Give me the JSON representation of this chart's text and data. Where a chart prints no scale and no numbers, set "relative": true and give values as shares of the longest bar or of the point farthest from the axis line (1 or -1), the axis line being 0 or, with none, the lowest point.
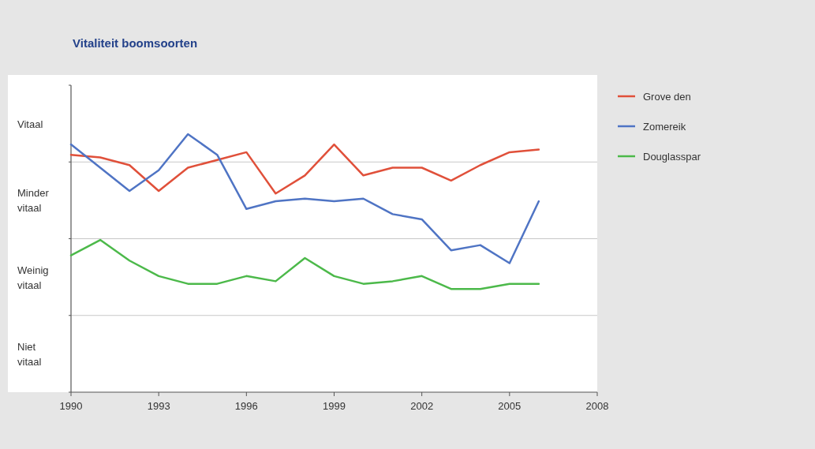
{
  "chart_data": {
    "type": "line",
    "title": "Vitaliteit boomsoorten",
    "relative": true,
    "x": [
      1990,
      1991,
      1992,
      1993,
      1994,
      1995,
      1996,
      1997,
      1998,
      1999,
      2000,
      2001,
      2002,
      2003,
      2004,
      2005,
      2006
    ],
    "series": [
      {
        "name": "Grove den",
        "color": "#e0503a",
        "values": [
          0.92,
          0.91,
          0.88,
          0.78,
          0.87,
          0.9,
          0.93,
          0.77,
          0.84,
          0.96,
          0.84,
          0.87,
          0.87,
          0.82,
          0.88,
          0.93,
          0.94
        ]
      },
      {
        "name": "Zomereik",
        "color": "#4f74c4",
        "values": [
          0.96,
          0.87,
          0.78,
          0.86,
          1,
          0.92,
          0.71,
          0.74,
          0.75,
          0.74,
          0.75,
          0.69,
          0.67,
          0.55,
          0.57,
          0.5,
          0.74
        ]
      },
      {
        "name": "Douglasspar",
        "color": "#4cb94a",
        "values": [
          0.53,
          0.59,
          0.51,
          0.45,
          0.42,
          0.42,
          0.45,
          0.43,
          0.52,
          0.45,
          0.42,
          0.43,
          0.45,
          0.4,
          0.4,
          0.42,
          0.42
        ]
      }
    ],
    "xlim": [
      1990,
      2008
    ],
    "xticks": [
      1990,
      1993,
      1996,
      1999,
      2002,
      2005,
      2008
    ],
    "annotations": [
      "Vitaal",
      "Minder vitaal",
      "Weinig vitaal",
      "Niet vitaal"
    ],
    "grid": "y",
    "legend": "right",
    "marker": "none",
    "line_style": "solid"
  }
}
